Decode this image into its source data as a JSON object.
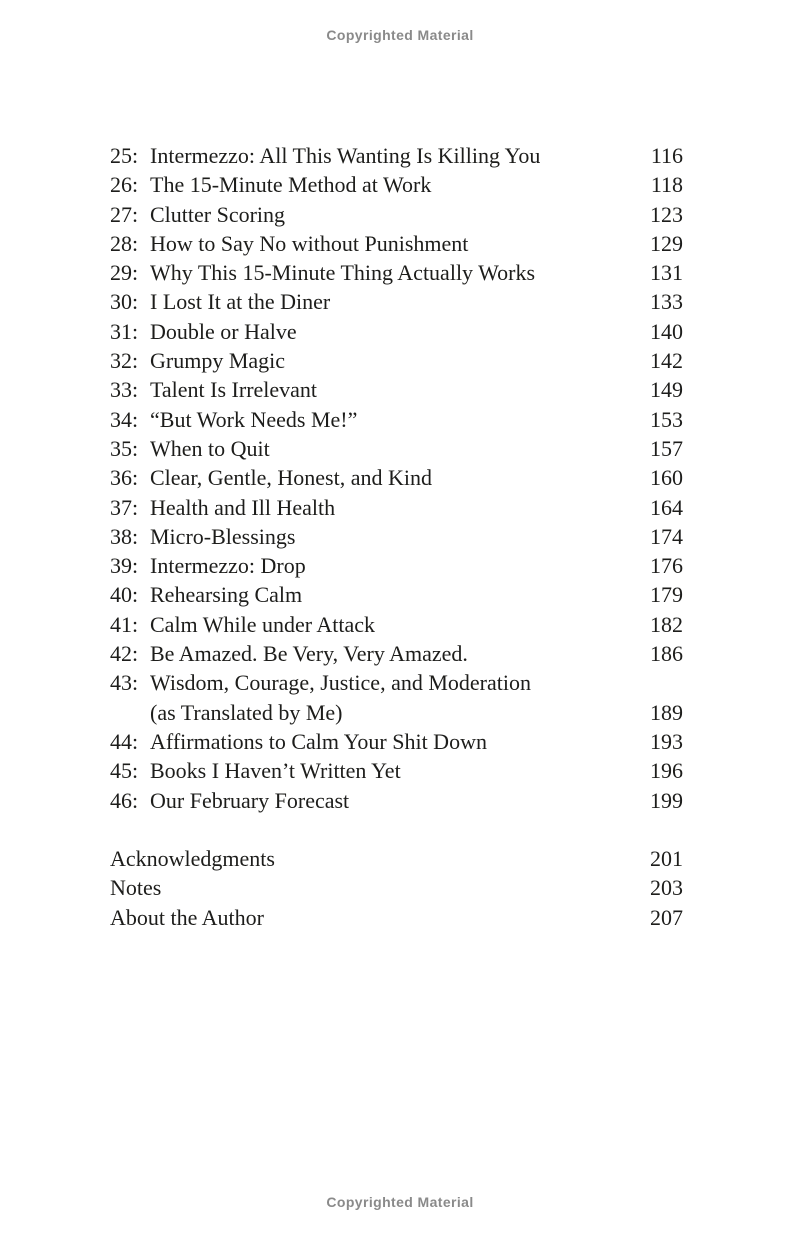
{
  "page": {
    "copyright_top": "Copyrighted Material",
    "copyright_bottom": "Copyrighted Material"
  },
  "colors": {
    "body_text": "#1d1d1b",
    "copyright_gray": "#8a8a8a",
    "background": "#ffffff"
  },
  "toc": {
    "entries": [
      {
        "num": "25:",
        "title": "Intermezzo: All This Wanting Is Killing You",
        "page": "116"
      },
      {
        "num": "26:",
        "title": "The 15-Minute Method at Work",
        "page": "118"
      },
      {
        "num": "27:",
        "title": "Clutter Scoring",
        "page": "123"
      },
      {
        "num": "28:",
        "title": "How to Say No without Punishment",
        "page": "129"
      },
      {
        "num": "29:",
        "title": "Why This 15-Minute Thing Actually Works",
        "page": "131"
      },
      {
        "num": "30:",
        "title": "I Lost It at the Diner",
        "page": "133"
      },
      {
        "num": "31:",
        "title": "Double or Halve",
        "page": "140"
      },
      {
        "num": "32:",
        "title": "Grumpy Magic",
        "page": "142"
      },
      {
        "num": "33:",
        "title": "Talent Is Irrelevant",
        "page": "149"
      },
      {
        "num": "34:",
        "title": "“But Work Needs Me!”",
        "page": "153"
      },
      {
        "num": "35:",
        "title": "When to Quit",
        "page": "157"
      },
      {
        "num": "36:",
        "title": "Clear, Gentle, Honest, and Kind",
        "page": "160"
      },
      {
        "num": "37:",
        "title": "Health and Ill Health",
        "page": "164"
      },
      {
        "num": "38:",
        "title": "Micro-Blessings",
        "page": "174"
      },
      {
        "num": "39:",
        "title": "Intermezzo: Drop",
        "page": "176"
      },
      {
        "num": "40:",
        "title": "Rehearsing Calm",
        "page": "179"
      },
      {
        "num": "41:",
        "title": "Calm While under Attack",
        "page": "182"
      },
      {
        "num": "42:",
        "title": "Be Amazed. Be Very, Very Amazed.",
        "page": "186"
      },
      {
        "num": "43:",
        "title": "Wisdom, Courage, Justice, and Moderation",
        "title2": "(as Translated by Me)",
        "page": "189"
      },
      {
        "num": "44:",
        "title": "Affirmations to Calm Your Shit Down",
        "page": "193"
      },
      {
        "num": "45:",
        "title": "Books I Haven’t Written Yet",
        "page": "196"
      },
      {
        "num": "46:",
        "title": "Our February Forecast",
        "page": "199"
      }
    ],
    "back_matter": [
      {
        "title": "Acknowledgments",
        "page": "201"
      },
      {
        "title": "Notes",
        "page": "203"
      },
      {
        "title": "About the Author",
        "page": "207"
      }
    ]
  }
}
